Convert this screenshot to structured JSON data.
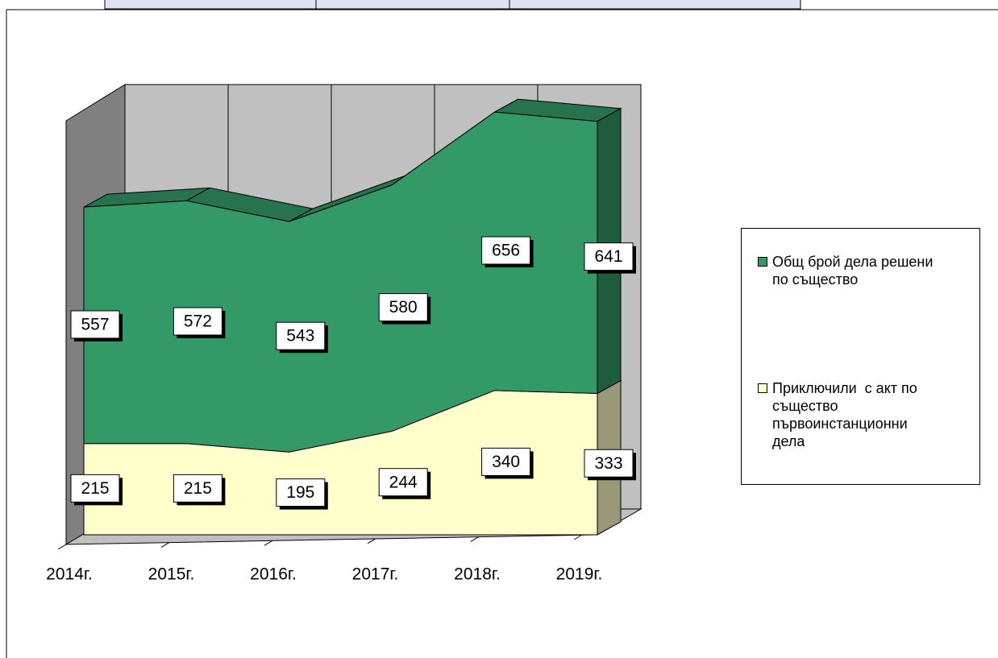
{
  "chart_data": {
    "type": "area3d-stacked",
    "categories": [
      "2014г.",
      "2015г.",
      "2016г.",
      "2017г.",
      "2018г.",
      "2019г."
    ],
    "series": [
      {
        "name": "Общ брой дела решени по същество",
        "color": "#339966",
        "values": [
          557,
          572,
          543,
          580,
          656,
          641
        ]
      },
      {
        "name": "Приключили  с акт по същество първоинстанционни дела",
        "color": "#ffffcc",
        "values": [
          215,
          215,
          195,
          244,
          340,
          333
        ]
      }
    ],
    "ylim": [
      0,
      1000
    ],
    "legend": "right"
  }
}
